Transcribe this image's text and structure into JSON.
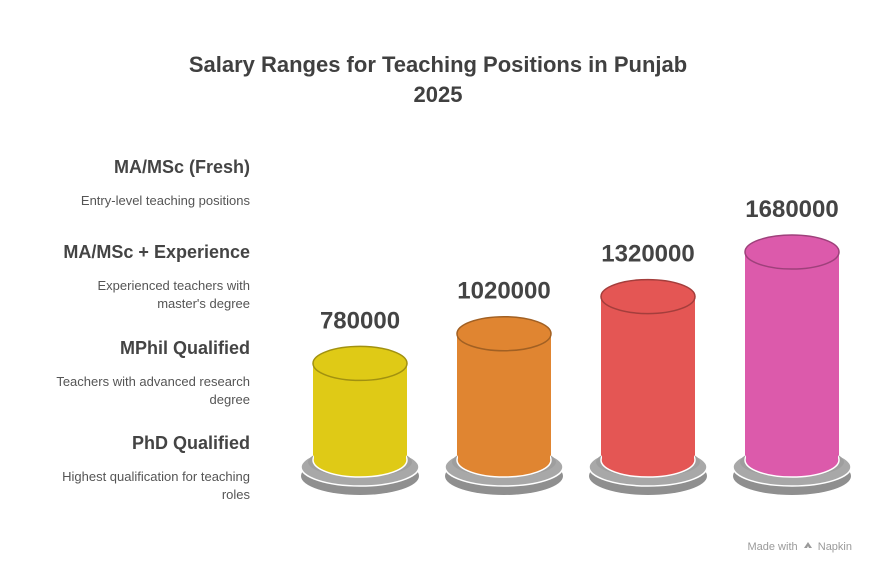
{
  "title_line1": "Salary Ranges for Teaching Positions in Punjab",
  "title_line2": "2025",
  "legend": [
    {
      "heading": "MA/MSc (Fresh)",
      "desc_lines": [
        "Entry-level teaching positions"
      ]
    },
    {
      "heading": "MA/MSc + Experience",
      "desc_lines": [
        "Experienced teachers with",
        "master's degree"
      ]
    },
    {
      "heading": "MPhil Qualified",
      "desc_lines": [
        "Teachers with advanced research",
        "degree"
      ]
    },
    {
      "heading": "PhD Qualified",
      "desc_lines": [
        "Highest qualification for teaching",
        "roles"
      ]
    }
  ],
  "footer": {
    "made_with": "Made with",
    "brand": "Napkin",
    "logo_icon": "napkin-logo-icon"
  },
  "chart_data": {
    "type": "bar",
    "categories": [
      "MA/MSc (Fresh)",
      "MA/MSc + Experience",
      "MPhil Qualified",
      "PhD Qualified"
    ],
    "values": [
      780000,
      1020000,
      1320000,
      1680000
    ],
    "value_labels": [
      "780000",
      "1020000",
      "1320000",
      "1680000"
    ],
    "colors": [
      "#dfca16",
      "#e08531",
      "#e45654",
      "#dc5aab"
    ],
    "base_color": "#a8a8a8",
    "grid": false,
    "style": "3d-cylinder"
  }
}
